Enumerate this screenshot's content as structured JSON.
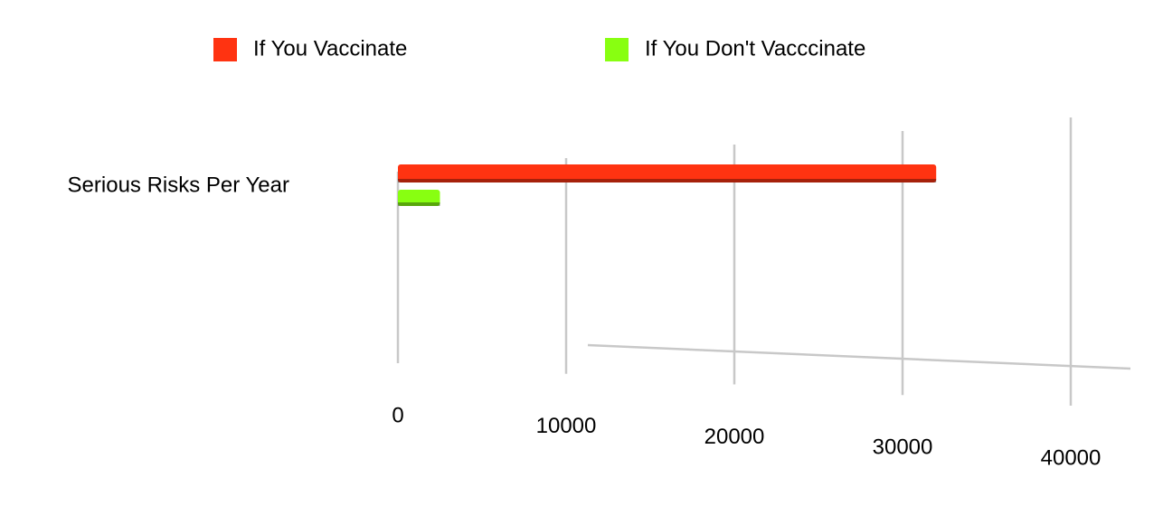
{
  "chart_data": {
    "type": "bar",
    "orientation": "horizontal",
    "categories": [
      "Serious Risks Per Year"
    ],
    "series": [
      {
        "name": "If You Vaccinate",
        "color": "#ff3311",
        "values": [
          32000
        ]
      },
      {
        "name": "If You Don't Vacccinate",
        "color": "#88ff11",
        "values": [
          2500
        ]
      }
    ],
    "xlim": [
      0,
      40000
    ],
    "xticks": [
      0,
      10000,
      20000,
      30000,
      40000
    ],
    "grid": true,
    "legend": "top"
  }
}
